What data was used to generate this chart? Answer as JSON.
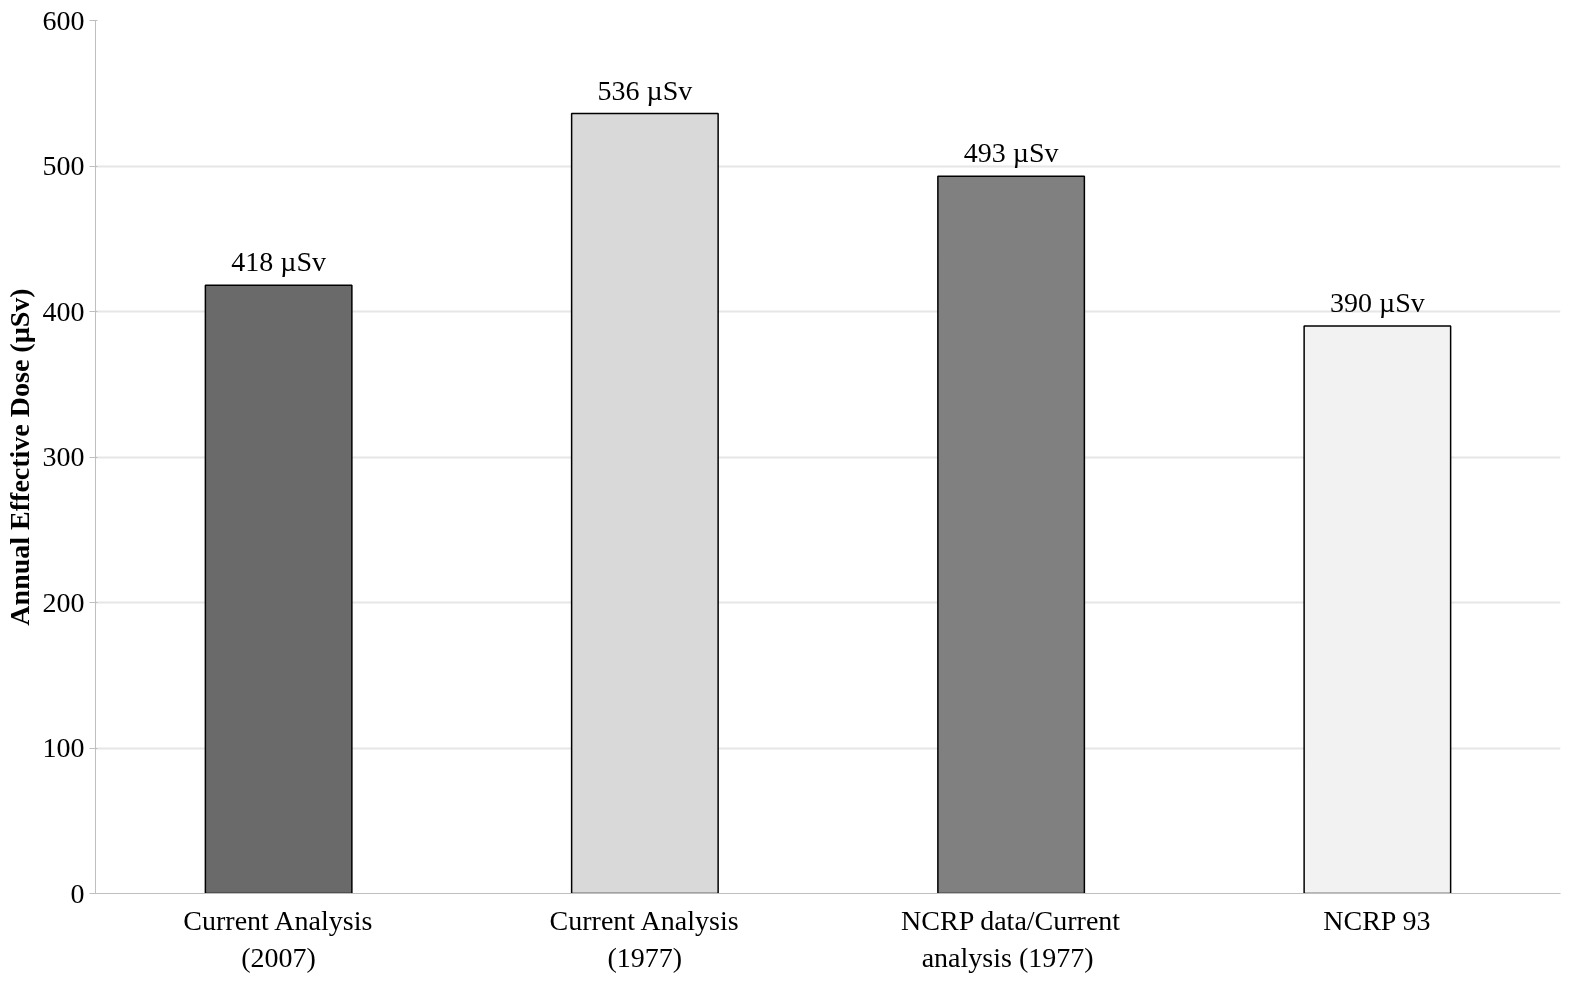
{
  "chart_data": {
    "type": "bar",
    "ylabel": "Annual Effective Dose (µSv)",
    "categories": [
      "Current Analysis\n(2007)",
      "Current Analysis\n(1977)",
      "NCRP data/Current\nanalysis  (1977)",
      "NCRP 93"
    ],
    "values": [
      418,
      536,
      493,
      390
    ],
    "colors": [
      "#6a6a6a",
      "#d9d9d9",
      "#808080",
      "#f2f2f2"
    ],
    "value_labels": [
      "418 µSv",
      "536 µSv",
      "493 µSv",
      "390 µSv"
    ],
    "ylim": [
      0,
      600
    ],
    "yticks": [
      0,
      100,
      200,
      300,
      400,
      500,
      600
    ],
    "grid": "y"
  }
}
